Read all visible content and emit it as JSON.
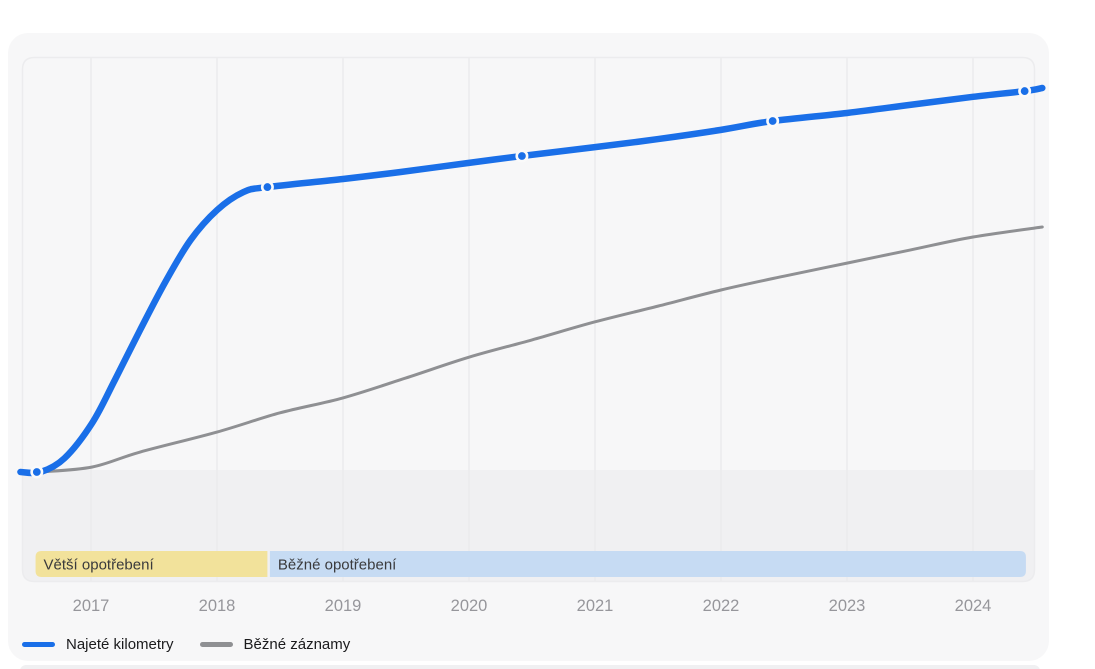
{
  "chart_data": {
    "type": "line",
    "title": "",
    "xlabel": "",
    "ylabel": "",
    "x_ticks": [
      "2017",
      "2018",
      "2019",
      "2020",
      "2021",
      "2022",
      "2023",
      "2024"
    ],
    "x_range": [
      2016.44,
      2024.56
    ],
    "y_range_relative": [
      0,
      105
    ],
    "y_axis_note": "no y-axis labels shown; values are relative units (100 = final odometer reading)",
    "grid": "vertical-only",
    "legend_position": "bottom-left",
    "series": [
      {
        "name": "Najeté kilometry",
        "color": "#1a6fe8",
        "stroke_width": 6.5,
        "points": [
          [
            2016.44,
            0
          ],
          [
            2016.6,
            0
          ],
          [
            2016.79,
            3.6
          ],
          [
            2017.01,
            12.8
          ],
          [
            2017.19,
            24.0
          ],
          [
            2017.39,
            37.0
          ],
          [
            2017.59,
            49.5
          ],
          [
            2017.79,
            60.4
          ],
          [
            2018.0,
            68.2
          ],
          [
            2018.21,
            72.9
          ],
          [
            2018.4,
            74.2
          ],
          [
            2019.0,
            76.3
          ],
          [
            2019.45,
            78.1
          ],
          [
            2020.0,
            80.5
          ],
          [
            2020.42,
            82.3
          ],
          [
            2021.0,
            84.6
          ],
          [
            2021.5,
            86.7
          ],
          [
            2022.0,
            89.1
          ],
          [
            2022.41,
            91.4
          ],
          [
            2023.0,
            93.5
          ],
          [
            2023.5,
            95.6
          ],
          [
            2024.0,
            97.7
          ],
          [
            2024.41,
            99.2
          ],
          [
            2024.55,
            100
          ]
        ],
        "markers": [
          [
            2016.57,
            0
          ],
          [
            2018.4,
            74.2
          ],
          [
            2020.42,
            82.3
          ],
          [
            2022.41,
            91.4
          ],
          [
            2024.41,
            99.2
          ]
        ]
      },
      {
        "name": "Běžné záznamy",
        "color": "#8f9093",
        "stroke_width": 3,
        "points": [
          [
            2016.6,
            0
          ],
          [
            2017.01,
            1.3
          ],
          [
            2017.39,
            5.2
          ],
          [
            2018.0,
            10.4
          ],
          [
            2018.5,
            15.4
          ],
          [
            2019.0,
            19.3
          ],
          [
            2019.5,
            24.5
          ],
          [
            2020.0,
            29.9
          ],
          [
            2020.5,
            34.4
          ],
          [
            2021.0,
            39.1
          ],
          [
            2021.5,
            43.2
          ],
          [
            2022.0,
            47.4
          ],
          [
            2022.5,
            51.0
          ],
          [
            2023.0,
            54.4
          ],
          [
            2023.5,
            57.8
          ],
          [
            2024.0,
            61.2
          ],
          [
            2024.55,
            63.8
          ]
        ],
        "markers": []
      }
    ],
    "wear_bands": [
      {
        "label": "Větší opotřebení",
        "color": "#f2e29b",
        "from": 2016.56,
        "to": 2018.4,
        "rounded": "left"
      },
      {
        "label": "Běžné opotřebení",
        "color": "#c6dbf3",
        "from": 2018.42,
        "to": 2024.42,
        "rounded": "right"
      }
    ],
    "colors": {
      "card_background": "#f7f7f8",
      "plot_border": "#ececee",
      "gridline": "#e9e9eb",
      "baseline_shade": "#f0f0f2",
      "tick_label": "#96969b",
      "band_label": "#3a3a3c",
      "marker_halo": "#fafafa"
    }
  },
  "legend": {
    "items": [
      {
        "label": "Najeté kilometry",
        "color": "#1a6fe8"
      },
      {
        "label": "Běžné záznamy",
        "color": "#8f9093"
      }
    ]
  }
}
